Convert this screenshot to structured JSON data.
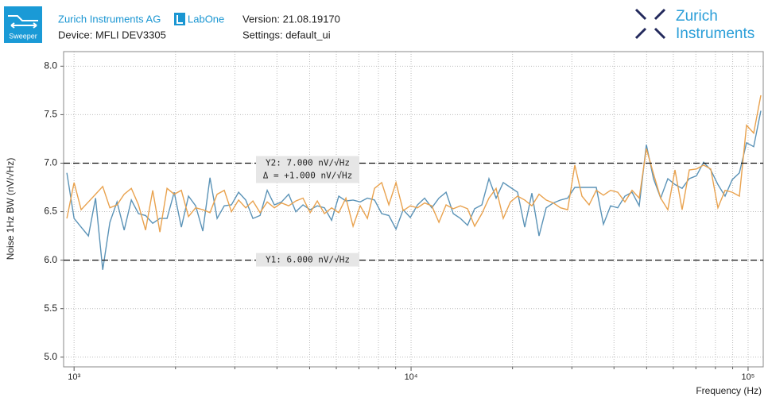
{
  "header": {
    "app_icon": "Sweeper",
    "company": "Zurich Instruments AG",
    "product": "LabOne",
    "version": "Version: 21.08.19170",
    "device": "Device: MFLI DEV3305",
    "settings": "Settings: default_ui",
    "logo": [
      "Zurich",
      "Instruments"
    ]
  },
  "chart_data": {
    "type": "line",
    "x_label": "Frequency (Hz)",
    "y_label": "Noise 1Hz BW (nV/√Hz)",
    "x": [
      952,
      1000,
      1050,
      1103,
      1158,
      1216,
      1277,
      1341,
      1408,
      1479,
      1553,
      1630,
      1712,
      1797,
      1887,
      1982,
      2081,
      2186,
      2295,
      2410,
      2531,
      2658,
      2791,
      2931,
      3078,
      3232,
      3394,
      3564,
      3742,
      3930,
      4127,
      4333,
      4551,
      4779,
      5018,
      5269,
      5533,
      5810,
      6101,
      6407,
      6728,
      7065,
      7419,
      7790,
      8181,
      8590,
      9021,
      9472,
      9947,
      10445,
      10969,
      11518,
      12095,
      12701,
      13337,
      14005,
      14706,
      15442,
      16216,
      17028,
      17881,
      18777,
      19717,
      20705,
      21742,
      22831,
      23975,
      25175,
      26436,
      27760,
      29151,
      30611,
      32144,
      33754,
      35445,
      37220,
      39085,
      41042,
      43098,
      45257,
      47524,
      49905,
      52404,
      55029,
      57786,
      60680,
      63720,
      66912,
      70264,
      73783,
      77479,
      81360,
      85436,
      89715,
      94209,
      98928,
      103884,
      109088
    ],
    "series": [
      {
        "color": "#5b93b7",
        "values": [
          6.9,
          6.43,
          6.34,
          6.25,
          6.64,
          5.9,
          6.39,
          6.6,
          6.31,
          6.62,
          6.48,
          6.46,
          6.38,
          6.43,
          6.43,
          6.7,
          6.34,
          6.66,
          6.56,
          6.3,
          6.85,
          6.43,
          6.56,
          6.57,
          6.7,
          6.62,
          6.43,
          6.46,
          6.72,
          6.57,
          6.6,
          6.68,
          6.5,
          6.57,
          6.52,
          6.56,
          6.54,
          6.41,
          6.66,
          6.61,
          6.62,
          6.6,
          6.64,
          6.62,
          6.48,
          6.46,
          6.32,
          6.52,
          6.44,
          6.57,
          6.64,
          6.54,
          6.64,
          6.7,
          6.48,
          6.43,
          6.36,
          6.53,
          6.57,
          6.84,
          6.64,
          6.8,
          6.75,
          6.7,
          6.34,
          6.69,
          6.25,
          6.54,
          6.59,
          6.62,
          6.64,
          6.75,
          6.75,
          6.75,
          6.75,
          6.37,
          6.56,
          6.54,
          6.66,
          6.7,
          6.56,
          7.19,
          6.84,
          6.64,
          6.84,
          6.78,
          6.74,
          6.84,
          6.87,
          7.01,
          6.93,
          6.78,
          6.66,
          6.83,
          6.9,
          7.21,
          7.17,
          7.54
        ]
      },
      {
        "color": "#e9a24e",
        "values": [
          6.43,
          6.8,
          6.52,
          6.6,
          6.68,
          6.76,
          6.54,
          6.57,
          6.68,
          6.74,
          6.57,
          6.31,
          6.72,
          6.29,
          6.74,
          6.68,
          6.72,
          6.45,
          6.54,
          6.52,
          6.49,
          6.68,
          6.72,
          6.5,
          6.62,
          6.54,
          6.61,
          6.49,
          6.6,
          6.54,
          6.59,
          6.56,
          6.61,
          6.64,
          6.49,
          6.61,
          6.48,
          6.54,
          6.49,
          6.64,
          6.35,
          6.56,
          6.43,
          6.74,
          6.8,
          6.57,
          6.8,
          6.51,
          6.56,
          6.54,
          6.59,
          6.56,
          6.39,
          6.57,
          6.53,
          6.56,
          6.53,
          6.35,
          6.48,
          6.64,
          6.74,
          6.43,
          6.6,
          6.66,
          6.62,
          6.56,
          6.68,
          6.62,
          6.59,
          6.54,
          6.52,
          6.98,
          6.66,
          6.57,
          6.72,
          6.67,
          6.72,
          6.7,
          6.6,
          6.72,
          6.64,
          7.15,
          6.89,
          6.64,
          6.52,
          6.93,
          6.52,
          6.93,
          6.94,
          6.98,
          6.94,
          6.54,
          6.72,
          6.7,
          6.66,
          7.39,
          7.31,
          7.7
        ]
      }
    ],
    "xlim": [
      931,
      110900
    ],
    "ylim": [
      4.9,
      8.15
    ],
    "xscale": "log",
    "xticks": [
      {
        "value": 1000,
        "label": "10³"
      },
      {
        "value": 10000,
        "label": "10⁴"
      },
      {
        "value": 100000,
        "label": "10⁵"
      }
    ],
    "xminorticks": [
      2000,
      3000,
      4000,
      5000,
      6000,
      7000,
      8000,
      9000,
      20000,
      30000,
      40000,
      50000,
      60000,
      70000,
      80000,
      90000
    ],
    "yticks": [
      {
        "value": 8,
        "label": "8.0"
      },
      7.5,
      {
        "value": 7,
        "label": "7.0"
      },
      6.5,
      {
        "value": 6,
        "label": "6.0"
      },
      5.5,
      {
        "value": 5,
        "label": "5.0"
      }
    ],
    "grid": true,
    "cursors": [
      {
        "label": "Y2: 7.000 nV/√Hz",
        "value": 7
      },
      {
        "label": "Y1: 6.000 nV/√Hz",
        "value": 6
      }
    ],
    "delta_label": "Δ = +1.000 nV/√Hz"
  }
}
